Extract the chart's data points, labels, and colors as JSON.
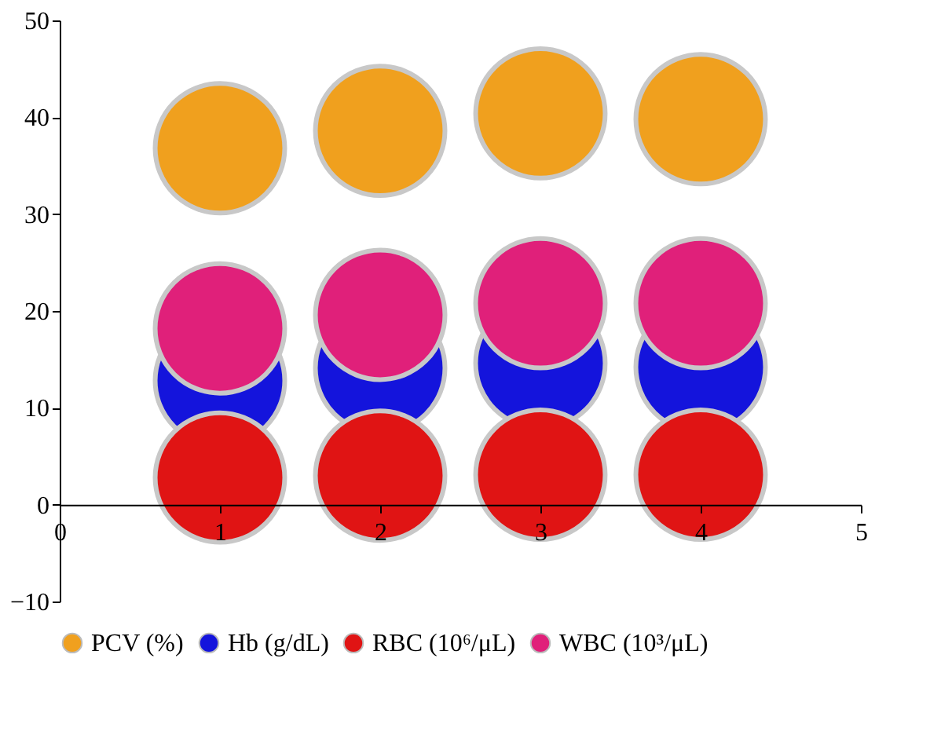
{
  "chart_data": {
    "type": "bubble",
    "x": [
      1,
      2,
      3,
      4
    ],
    "xlim": [
      0,
      5
    ],
    "xticks": [
      0,
      1,
      2,
      3,
      4,
      5
    ],
    "ylim": [
      -10,
      50
    ],
    "yticks": [
      -10,
      0,
      10,
      20,
      30,
      40,
      50
    ],
    "legend": "bottom",
    "series": [
      {
        "name": "PCV (%)",
        "color": "#f0a01e",
        "values": [
          36.8,
          38.6,
          40.4,
          39.8
        ],
        "sizes": [
          1,
          1,
          1,
          1
        ]
      },
      {
        "name": "Hb (g/dL)",
        "color": "#1414dc",
        "values": [
          12.8,
          14.1,
          14.6,
          14.2
        ],
        "sizes": [
          1,
          1,
          1,
          1
        ]
      },
      {
        "name": "RBC (10⁶/μL)",
        "color": "#e01414",
        "values": [
          2.8,
          3.0,
          3.1,
          3.1
        ],
        "sizes": [
          1,
          1,
          1,
          1
        ]
      },
      {
        "name": "WBC (10³/μL)",
        "color": "#e0207a",
        "values": [
          18.2,
          19.6,
          20.8,
          20.8
        ],
        "sizes": [
          1,
          1,
          1,
          1
        ]
      }
    ]
  }
}
